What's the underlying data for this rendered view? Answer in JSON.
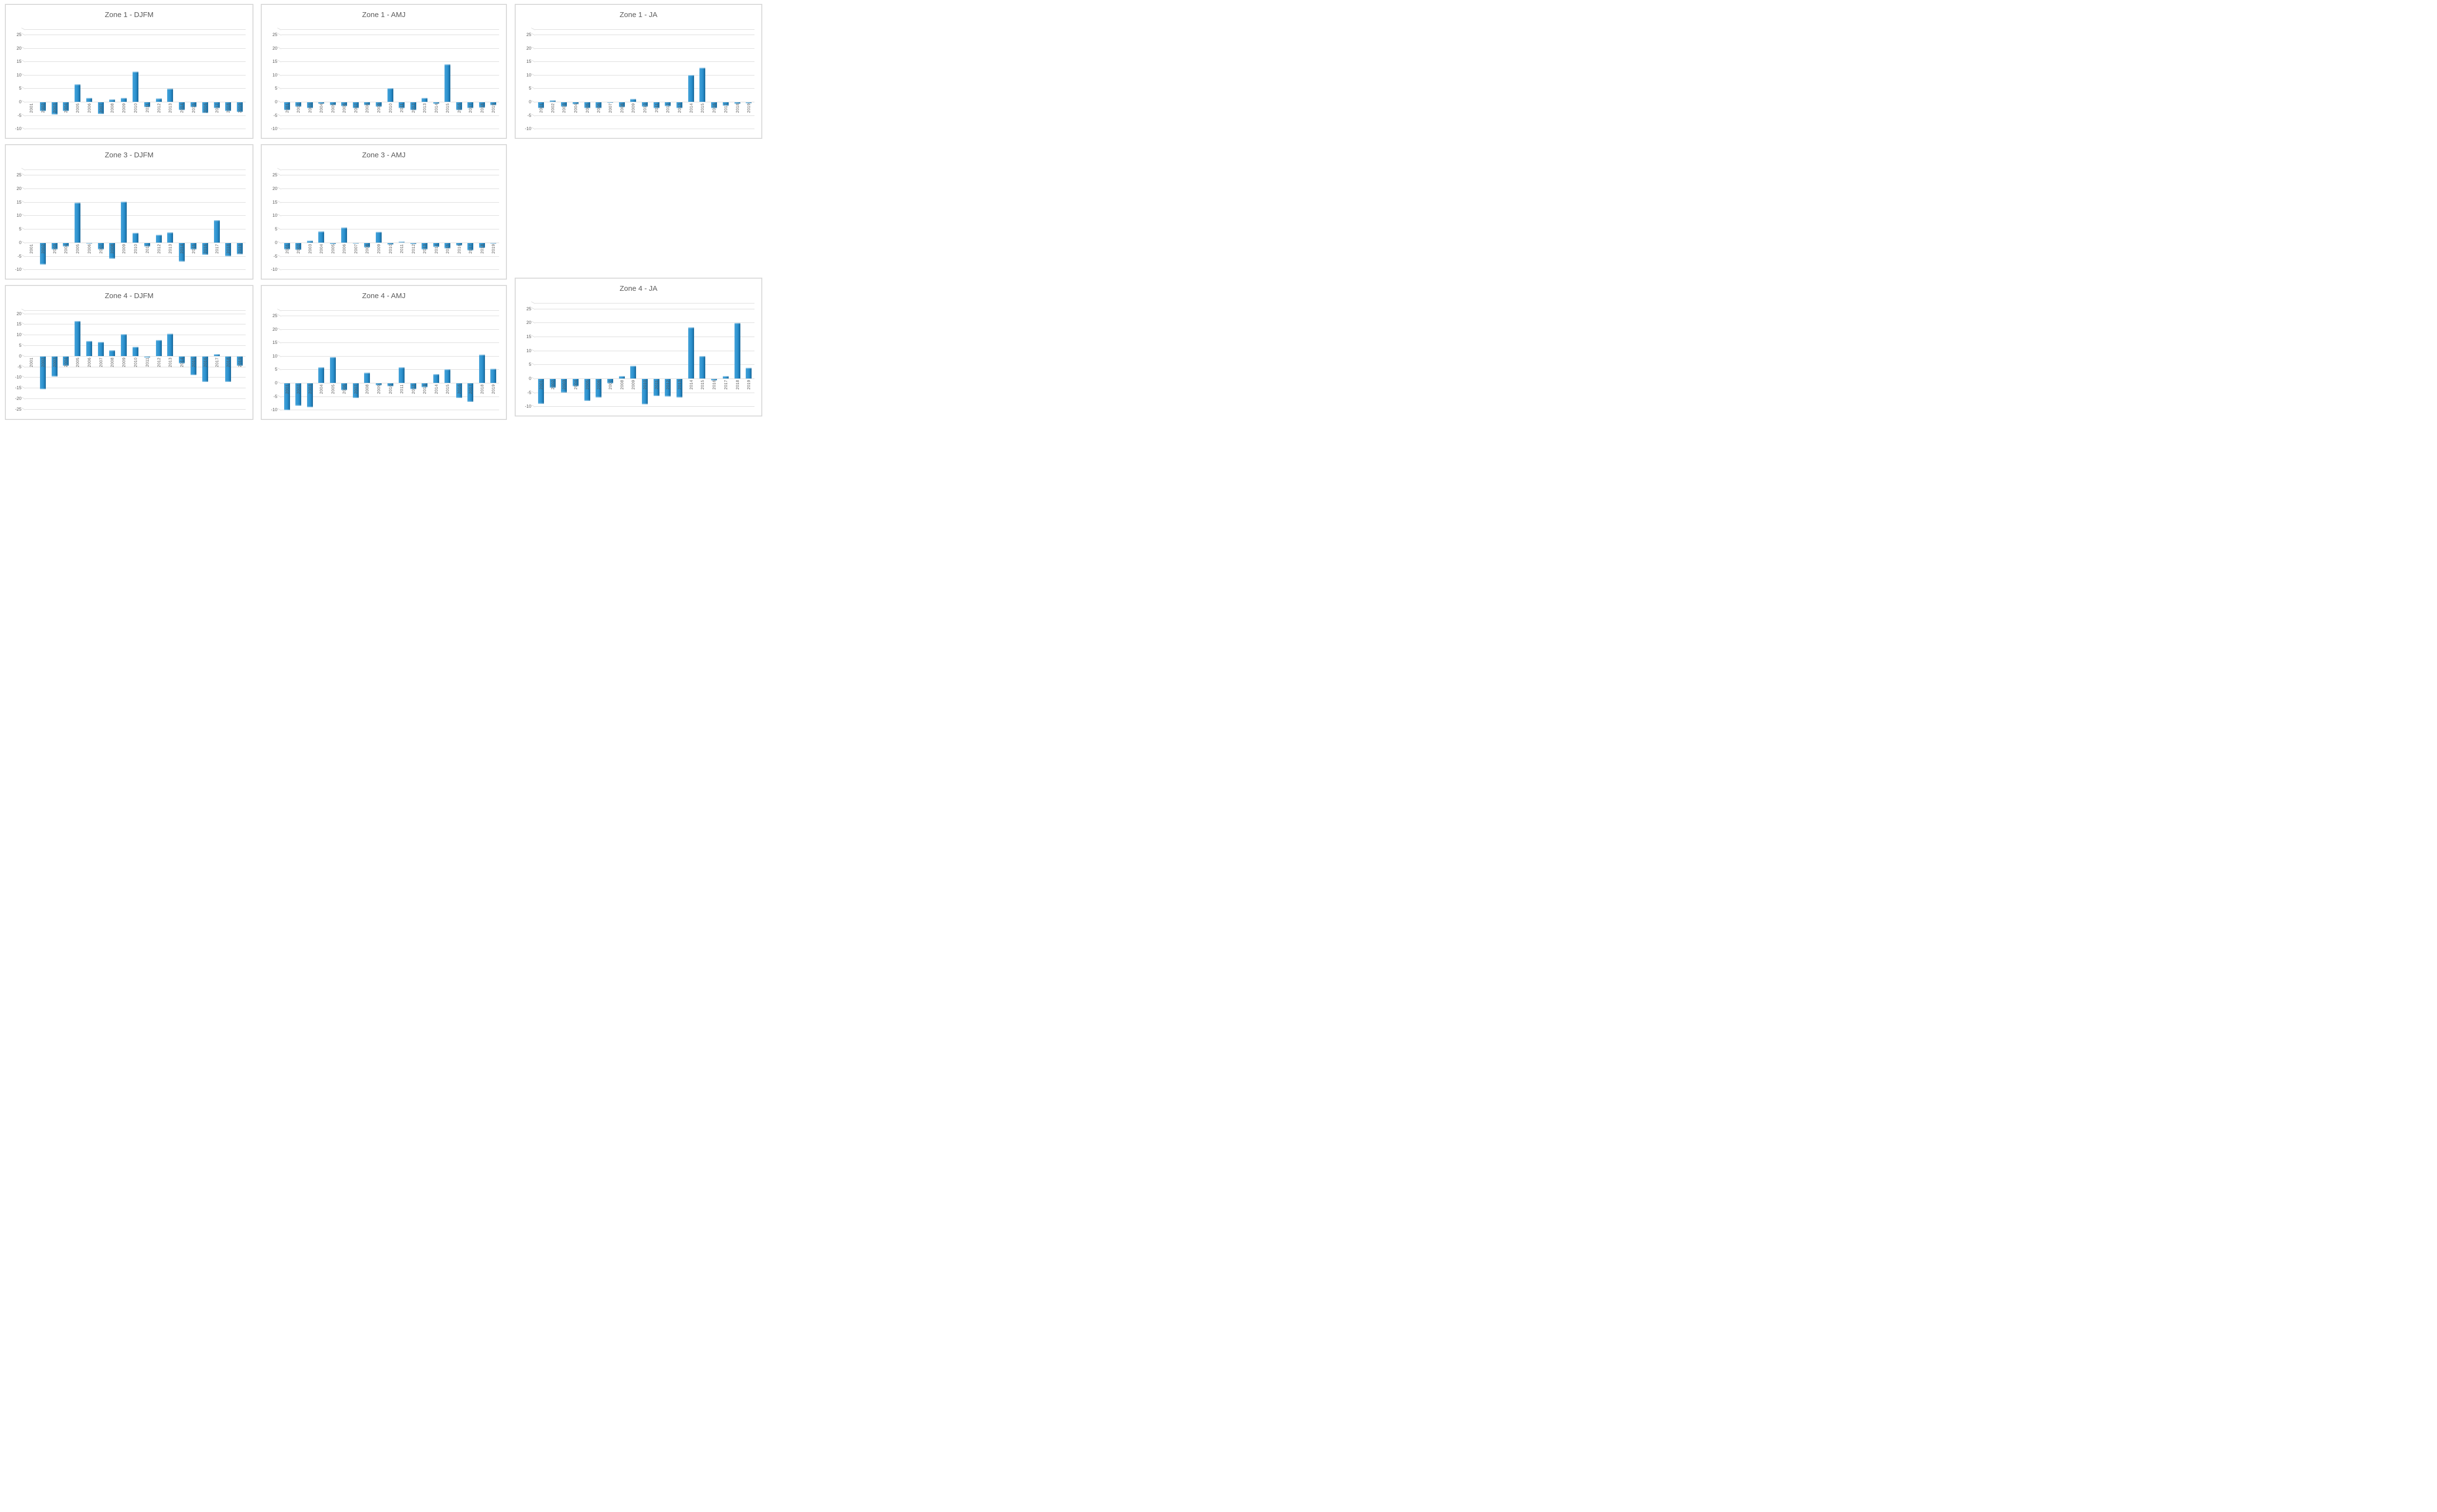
{
  "colors": {
    "bar_fill": "#2B91CE",
    "bar_edge_dark": "#14608F",
    "bar_highlight": "#7FC0E6",
    "gridline": "#DBDBDB",
    "panel_border": "#D9D9D9",
    "title_text": "#595959",
    "axis_text": "#595959",
    "background": "#FFFFFF"
  },
  "chart_data": [
    {
      "type": "bar",
      "title": "Zone 1 - DJFM",
      "categories": [
        "2001",
        "2002",
        "2003",
        "2004",
        "2005",
        "2006",
        "2007",
        "2008",
        "2009",
        "2010",
        "2011",
        "2012",
        "2013",
        "2014",
        "2015",
        "2016",
        "2017",
        "2018",
        "2019"
      ],
      "values": [
        0,
        -3.2,
        -4.5,
        -3.2,
        6.5,
        1.4,
        -4.4,
        1.0,
        1.4,
        11.3,
        -1.8,
        1.2,
        4.9,
        -2.9,
        -1.8,
        -3.9,
        -2.2,
        -3.3,
        -3.6
      ],
      "xlabel": "",
      "ylabel": "",
      "yticks": [
        25,
        20,
        15,
        10,
        5,
        0,
        -5,
        -10
      ],
      "ylim": [
        -10.5,
        27
      ],
      "grid": true,
      "legend": "none"
    },
    {
      "type": "bar",
      "title": "Zone 1 - AMJ",
      "categories": [
        "2001",
        "2002",
        "2003",
        "2004",
        "2005",
        "2006",
        "2007",
        "2008",
        "2009",
        "2010",
        "2011",
        "2012",
        "2013",
        "2014",
        "2015",
        "2016",
        "2017",
        "2018",
        "2019"
      ],
      "values": [
        -2.8,
        -1.6,
        -2.2,
        -0.5,
        -1.1,
        -1.4,
        -2.2,
        -1.1,
        -1.6,
        5.0,
        -2.2,
        -2.8,
        1.4,
        -0.6,
        14.0,
        -2.9,
        -2.2,
        -1.9,
        -1.1
      ],
      "xlabel": "",
      "ylabel": "",
      "yticks": [
        25,
        20,
        15,
        10,
        5,
        0,
        -5,
        -10
      ],
      "ylim": [
        -10.5,
        27
      ],
      "grid": true,
      "legend": "none"
    },
    {
      "type": "bar",
      "title": "Zone 1 - JA",
      "categories": [
        "2001",
        "2002",
        "2003",
        "2004",
        "2005",
        "2006",
        "2007",
        "2008",
        "2009",
        "2010",
        "2011",
        "2012",
        "2013",
        "2014",
        "2015",
        "2016",
        "2017",
        "2018",
        "2019"
      ],
      "values": [
        -2.2,
        0.6,
        -1.7,
        -0.7,
        -2.1,
        -2.2,
        -0.2,
        -1.8,
        1.1,
        -1.7,
        -2.1,
        -1.4,
        -2.1,
        10.0,
        12.7,
        -2.1,
        -1.2,
        -0.6,
        -0.3
      ],
      "xlabel": "",
      "ylabel": "",
      "yticks": [
        25,
        20,
        15,
        10,
        5,
        0,
        -5,
        -10
      ],
      "ylim": [
        -10.5,
        27
      ],
      "grid": true,
      "legend": "none"
    },
    {
      "type": "bar",
      "title": "Zone 3 - DJFM",
      "categories": [
        "2001",
        "2002",
        "2003",
        "2004",
        "2005",
        "2006",
        "2007",
        "2008",
        "2009",
        "2010",
        "2011",
        "2012",
        "2013",
        "2014",
        "2015",
        "2016",
        "2017",
        "2018",
        "2019"
      ],
      "values": [
        0,
        -7.9,
        -2.4,
        -1.3,
        14.8,
        -0.3,
        -2.4,
        -5.9,
        15.2,
        3.6,
        -1.3,
        2.9,
        3.7,
        -6.9,
        -2.4,
        -4.4,
        8.2,
        -4.9,
        -4.2
      ],
      "xlabel": "",
      "ylabel": "",
      "yticks": [
        25,
        20,
        15,
        10,
        5,
        0,
        -5,
        -10
      ],
      "ylim": [
        -10.5,
        27
      ],
      "grid": true,
      "legend": "none"
    },
    {
      "type": "bar",
      "title": "Zone 3 - AMJ",
      "categories": [
        "2001",
        "2002",
        "2003",
        "2004",
        "2005",
        "2006",
        "2007",
        "2008",
        "2009",
        "2010",
        "2011",
        "2012",
        "2013",
        "2014",
        "2015",
        "2016",
        "2017",
        "2018",
        "2019"
      ],
      "values": [
        -2.4,
        -2.5,
        0.7,
        4.2,
        -0.4,
        5.5,
        -0.3,
        -1.6,
        3.9,
        -0.6,
        0.4,
        -0.4,
        -2.3,
        -1.4,
        -2.1,
        -0.9,
        -2.8,
        -1.9,
        -0.3
      ],
      "xlabel": "",
      "ylabel": "",
      "yticks": [
        25,
        20,
        15,
        10,
        5,
        0,
        -5,
        -10
      ],
      "ylim": [
        -10.5,
        27
      ],
      "grid": true,
      "legend": "none"
    },
    {
      "type": "bar",
      "title": "Zone 4 - DJFM",
      "categories": [
        "2001",
        "2002",
        "2003",
        "2004",
        "2005",
        "2006",
        "2007",
        "2008",
        "2009",
        "2010",
        "2011",
        "2012",
        "2013",
        "2014",
        "2015",
        "2016",
        "2017",
        "2018",
        "2019"
      ],
      "values": [
        0,
        -15.4,
        -9.5,
        -4.5,
        16.4,
        7.0,
        6.7,
        2.7,
        10.3,
        4.3,
        -0.5,
        7.6,
        10.6,
        -3.4,
        -8.8,
        -12.1,
        0.8,
        -12.1,
        -4.4
      ],
      "xlabel": "",
      "ylabel": "",
      "yticks": [
        20,
        15,
        10,
        5,
        0,
        -5,
        -10,
        -15,
        -20,
        -25
      ],
      "ylim": [
        -26,
        21.5
      ],
      "grid": true,
      "legend": "none"
    },
    {
      "type": "bar",
      "title": "Zone 4 - AMJ",
      "categories": [
        "2001",
        "2002",
        "2003",
        "2004",
        "2005",
        "2006",
        "2007",
        "2008",
        "2009",
        "2010",
        "2011",
        "2012",
        "2013",
        "2014",
        "2015",
        "2016",
        "2017",
        "2018",
        "2019"
      ],
      "values": [
        -9.9,
        -8.4,
        -8.9,
        5.8,
        9.7,
        -2.6,
        -5.4,
        3.8,
        -0.8,
        -1.1,
        5.8,
        -2.1,
        -1.4,
        3.2,
        5.1,
        -5.4,
        -6.8,
        10.5,
        5.2
      ],
      "xlabel": "",
      "ylabel": "",
      "yticks": [
        25,
        20,
        15,
        10,
        5,
        0,
        -5,
        -10
      ],
      "ylim": [
        -10.5,
        27
      ],
      "grid": true,
      "legend": "none"
    },
    {
      "type": "bar",
      "title": "Zone 4 - JA",
      "categories": [
        "2001",
        "2002",
        "2003",
        "2004",
        "2005",
        "2006",
        "2007",
        "2008",
        "2009",
        "2010",
        "2011",
        "2012",
        "2013",
        "2014",
        "2015",
        "2016",
        "2017",
        "2018",
        "2019"
      ],
      "values": [
        -8.9,
        -3.1,
        -4.9,
        -2.6,
        -7.9,
        -6.6,
        -1.6,
        0.8,
        4.5,
        -9.1,
        -6.1,
        -6.3,
        -6.6,
        18.3,
        8.0,
        -0.6,
        0.8,
        19.8,
        3.8
      ],
      "xlabel": "",
      "ylabel": "",
      "yticks": [
        25,
        20,
        15,
        10,
        5,
        0,
        -5,
        -10
      ],
      "ylim": [
        -10.5,
        27
      ],
      "grid": true,
      "legend": "none"
    }
  ]
}
